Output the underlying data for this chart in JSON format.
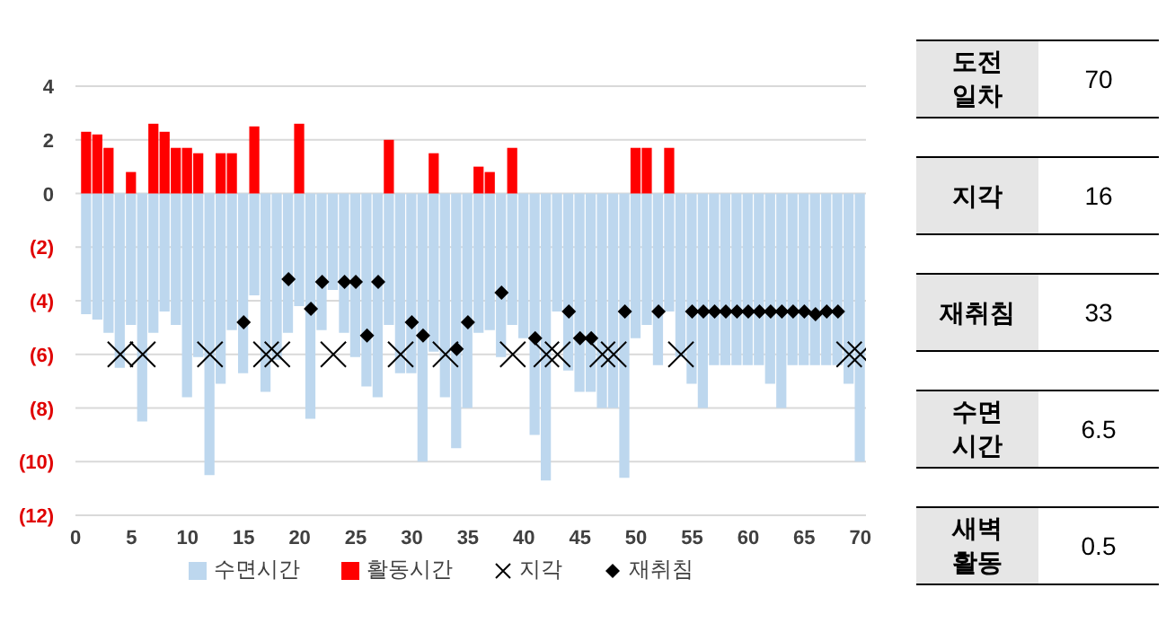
{
  "chart_data": [
    {
      "type": "bar",
      "xlim": [
        0,
        70.5
      ],
      "xticks": [
        0,
        5,
        10,
        15,
        20,
        25,
        30,
        35,
        40,
        45,
        50,
        55,
        60,
        65,
        70
      ],
      "ylim": [
        -12,
        4
      ],
      "yticks": [
        4,
        2,
        0,
        {
          "value": -2,
          "label": "(2)"
        },
        {
          "value": -4,
          "label": "(4)"
        },
        {
          "value": -6,
          "label": "(6)"
        },
        {
          "value": -8,
          "label": "(8)"
        },
        {
          "value": -10,
          "label": "(10)"
        },
        {
          "value": -12,
          "label": "(12)"
        }
      ],
      "grid": "y",
      "legend": "bottom",
      "series": [
        {
          "type": "bar",
          "name": "수면시간",
          "color": "#bdd7ee",
          "x": [
            1,
            2,
            3,
            4,
            5,
            6,
            7,
            8,
            9,
            10,
            11,
            12,
            13,
            14,
            15,
            16,
            17,
            18,
            19,
            20,
            21,
            22,
            23,
            24,
            25,
            26,
            27,
            28,
            29,
            30,
            31,
            32,
            33,
            34,
            35,
            36,
            37,
            38,
            39,
            40,
            41,
            42,
            43,
            44,
            45,
            46,
            47,
            48,
            49,
            50,
            51,
            52,
            53,
            54,
            55,
            56,
            57,
            58,
            59,
            60,
            61,
            62,
            63,
            64,
            65,
            66,
            67,
            68,
            69,
            70
          ],
          "values": [
            -4.5,
            -4.7,
            -5.2,
            -6.5,
            -4.9,
            -8.5,
            -5.2,
            -4.4,
            -4.9,
            -7.6,
            -6.1,
            -10.5,
            -7.1,
            -5.1,
            -6.7,
            -3.8,
            -7.4,
            -6.2,
            -5.2,
            -4.2,
            -8.4,
            -5.1,
            -3.6,
            -5.2,
            -6.1,
            -7.2,
            -7.6,
            -4.9,
            -6.7,
            -6.7,
            -10,
            -5.9,
            -7.6,
            -9.5,
            -8,
            -5.2,
            -5.1,
            -6.1,
            -4.9,
            -5.4,
            -9,
            -10.7,
            -4.4,
            -6.6,
            -7.4,
            -7.4,
            -8,
            -8,
            -10.6,
            -5.4,
            -4.9,
            -6.4,
            -4.4,
            -6.1,
            -7.1,
            -8,
            -6.4,
            -6.4,
            -6.4,
            -6.4,
            -6.4,
            -7.1,
            -8,
            -6.4,
            -6.4,
            -6.4,
            -6.4,
            -6.4,
            -7.1,
            -10
          ]
        },
        {
          "type": "bar",
          "name": "활동시간",
          "color": "#ff0000",
          "x": [
            1,
            2,
            3,
            5,
            7,
            8,
            9,
            10,
            11,
            13,
            14,
            16,
            20,
            28,
            32,
            36,
            37,
            39,
            50,
            51,
            53
          ],
          "values": [
            2.3,
            2.2,
            1.7,
            0.8,
            2.6,
            2.3,
            1.7,
            1.7,
            1.5,
            1.5,
            1.5,
            2.5,
            2.6,
            2,
            1.5,
            1,
            0.8,
            1.7,
            1.7,
            1.7,
            1.7
          ]
        },
        {
          "type": "scatter",
          "name": "지각",
          "color": "#000000",
          "marker": "cross",
          "x": [
            4,
            6,
            12,
            17,
            18,
            23,
            29,
            33,
            39,
            42,
            43,
            47,
            48,
            54,
            69,
            70
          ],
          "values": [
            -6,
            -6,
            -6,
            -6,
            -6,
            -6,
            -6,
            -6,
            -6,
            -6,
            -6,
            -6,
            -6,
            -6,
            -6,
            -6
          ]
        },
        {
          "type": "scatter",
          "name": "재취침",
          "color": "#000000",
          "marker": "diamond",
          "x": [
            15,
            19,
            21,
            22,
            24,
            25,
            26,
            27,
            30,
            31,
            34,
            35,
            38,
            41,
            44,
            45,
            46,
            49,
            52,
            55,
            56,
            57,
            58,
            59,
            60,
            61,
            62,
            63,
            64,
            65,
            66,
            67,
            68
          ],
          "values": [
            -4.8,
            -3.2,
            -4.3,
            -3.3,
            -3.3,
            -3.3,
            -5.3,
            -3.3,
            -4.8,
            -5.3,
            -5.8,
            -4.8,
            -3.7,
            -5.4,
            -4.4,
            -5.4,
            -5.4,
            -4.4,
            -4.4,
            -4.4,
            -4.4,
            -4.4,
            -4.4,
            -4.4,
            -4.4,
            -4.4,
            -4.4,
            -4.4,
            -4.4,
            -4.4,
            -4.5,
            -4.4,
            -4.4
          ]
        }
      ]
    },
    {
      "type": "other",
      "data_labels": true,
      "categories": [
        "도전 일차",
        "지각",
        "재취침",
        "수면 시간",
        "새벽 활동"
      ],
      "values": [
        70,
        16,
        33,
        6.5,
        0.5
      ]
    }
  ]
}
